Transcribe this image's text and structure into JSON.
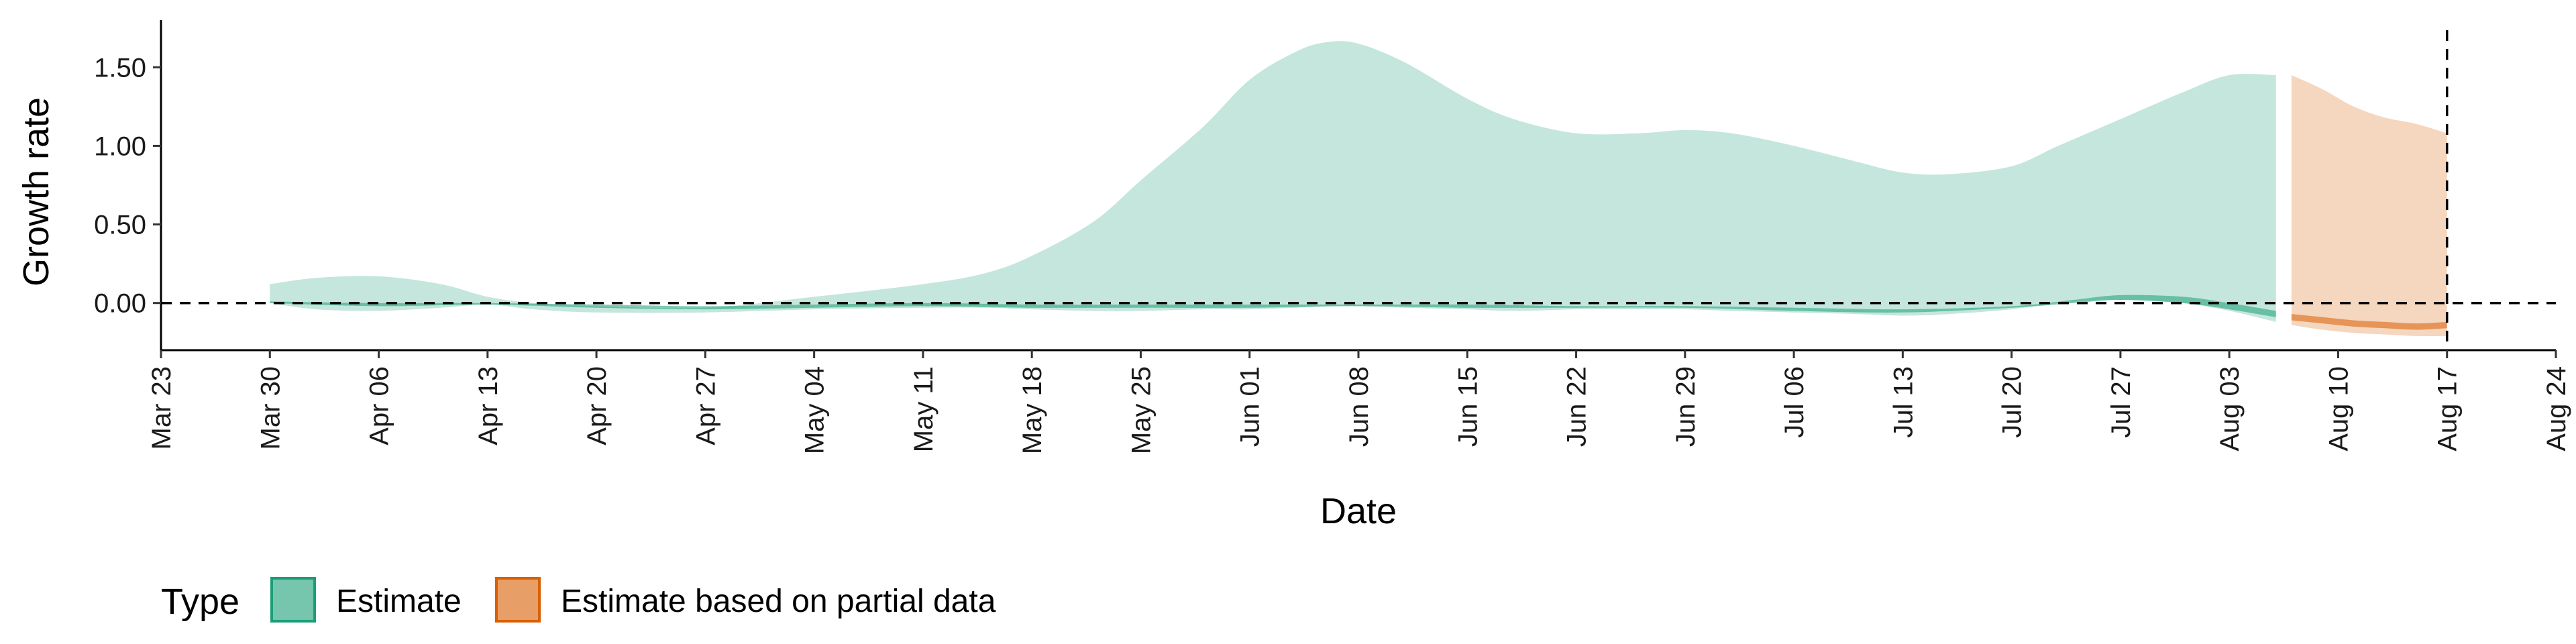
{
  "chart_data": {
    "type": "area",
    "title": "",
    "xlabel": "Date",
    "ylabel": "Growth rate",
    "x_range": [
      "2020-03-23",
      "2020-08-24"
    ],
    "ylim": [
      -0.3,
      1.8
    ],
    "y_ticks": [
      0.0,
      0.5,
      1.0,
      1.5
    ],
    "y_tick_labels": [
      "0.00",
      "0.50",
      "1.00",
      "1.50"
    ],
    "x_ticks": [
      "2020-03-23",
      "2020-03-30",
      "2020-04-06",
      "2020-04-13",
      "2020-04-20",
      "2020-04-27",
      "2020-05-04",
      "2020-05-11",
      "2020-05-18",
      "2020-05-25",
      "2020-06-01",
      "2020-06-08",
      "2020-06-15",
      "2020-06-22",
      "2020-06-29",
      "2020-07-06",
      "2020-07-13",
      "2020-07-20",
      "2020-07-27",
      "2020-08-03",
      "2020-08-10",
      "2020-08-17",
      "2020-08-24"
    ],
    "x_tick_labels": [
      "Mar 23",
      "Mar 30",
      "Apr 06",
      "Apr 13",
      "Apr 20",
      "Apr 27",
      "May 04",
      "May 11",
      "May 18",
      "May 25",
      "Jun 01",
      "Jun 08",
      "Jun 15",
      "Jun 22",
      "Jun 29",
      "Jul 06",
      "Jul 13",
      "Jul 20",
      "Jul 27",
      "Aug 03",
      "Aug 10",
      "Aug 17",
      "Aug 24"
    ],
    "hline_y": 0,
    "vline_x": "2020-08-17",
    "grid": false,
    "legend": {
      "title": "Type",
      "position": "bottom"
    },
    "series": [
      {
        "name": "Estimate",
        "color": "#1b9e77",
        "outer_band": {
          "x": [
            "2020-03-30",
            "2020-04-02",
            "2020-04-06",
            "2020-04-10",
            "2020-04-13",
            "2020-04-16",
            "2020-04-20",
            "2020-04-27",
            "2020-05-04",
            "2020-05-11",
            "2020-05-15",
            "2020-05-18",
            "2020-05-22",
            "2020-05-25",
            "2020-05-29",
            "2020-06-01",
            "2020-06-04",
            "2020-06-06",
            "2020-06-08",
            "2020-06-11",
            "2020-06-15",
            "2020-06-18",
            "2020-06-22",
            "2020-06-26",
            "2020-06-29",
            "2020-07-02",
            "2020-07-06",
            "2020-07-10",
            "2020-07-13",
            "2020-07-16",
            "2020-07-20",
            "2020-07-23",
            "2020-07-27",
            "2020-07-31",
            "2020-08-03",
            "2020-08-06"
          ],
          "upper": [
            0.12,
            0.16,
            0.17,
            0.12,
            0.04,
            0.0,
            -0.02,
            -0.03,
            0.04,
            0.12,
            0.19,
            0.3,
            0.52,
            0.78,
            1.12,
            1.42,
            1.6,
            1.66,
            1.65,
            1.53,
            1.3,
            1.17,
            1.08,
            1.08,
            1.1,
            1.08,
            1.0,
            0.9,
            0.83,
            0.82,
            0.87,
            1.0,
            1.17,
            1.34,
            1.45,
            1.45
          ],
          "lower": [
            0.0,
            -0.04,
            -0.05,
            -0.03,
            -0.01,
            -0.04,
            -0.06,
            -0.06,
            -0.04,
            -0.03,
            -0.03,
            -0.04,
            -0.05,
            -0.05,
            -0.04,
            -0.04,
            -0.03,
            -0.02,
            -0.02,
            -0.03,
            -0.04,
            -0.05,
            -0.04,
            -0.04,
            -0.04,
            -0.05,
            -0.06,
            -0.07,
            -0.08,
            -0.07,
            -0.04,
            0.0,
            0.02,
            0.0,
            -0.05,
            -0.12
          ]
        },
        "inner_band": {
          "x": [
            "2020-03-30",
            "2020-04-06",
            "2020-04-13",
            "2020-04-20",
            "2020-04-27",
            "2020-05-04",
            "2020-05-11",
            "2020-05-18",
            "2020-05-25",
            "2020-06-01",
            "2020-06-08",
            "2020-06-15",
            "2020-06-22",
            "2020-06-29",
            "2020-07-06",
            "2020-07-13",
            "2020-07-20",
            "2020-07-24",
            "2020-07-27",
            "2020-07-31",
            "2020-08-03",
            "2020-08-06"
          ],
          "upper": [
            0.01,
            0.0,
            0.0,
            -0.01,
            -0.02,
            -0.01,
            0.0,
            -0.01,
            -0.01,
            -0.01,
            -0.01,
            -0.01,
            -0.02,
            -0.02,
            -0.03,
            -0.04,
            -0.02,
            0.02,
            0.05,
            0.04,
            0.0,
            -0.05
          ],
          "lower": [
            0.0,
            -0.02,
            -0.01,
            -0.03,
            -0.04,
            -0.03,
            -0.02,
            -0.03,
            -0.03,
            -0.03,
            -0.02,
            -0.03,
            -0.03,
            -0.03,
            -0.05,
            -0.06,
            -0.03,
            0.0,
            0.02,
            0.0,
            -0.04,
            -0.09
          ]
        }
      },
      {
        "name": "Estimate based on partial data",
        "color": "#d95f02",
        "outer_band": {
          "x": [
            "2020-08-07",
            "2020-08-09",
            "2020-08-11",
            "2020-08-13",
            "2020-08-15",
            "2020-08-17"
          ],
          "upper": [
            1.45,
            1.36,
            1.25,
            1.18,
            1.14,
            1.08
          ],
          "lower": [
            -0.14,
            -0.17,
            -0.19,
            -0.2,
            -0.21,
            -0.21
          ]
        },
        "inner_band": {
          "x": [
            "2020-08-07",
            "2020-08-09",
            "2020-08-11",
            "2020-08-13",
            "2020-08-15",
            "2020-08-17"
          ],
          "upper": [
            -0.07,
            -0.09,
            -0.11,
            -0.12,
            -0.13,
            -0.12
          ],
          "lower": [
            -0.11,
            -0.13,
            -0.15,
            -0.16,
            -0.17,
            -0.16
          ]
        }
      }
    ]
  }
}
